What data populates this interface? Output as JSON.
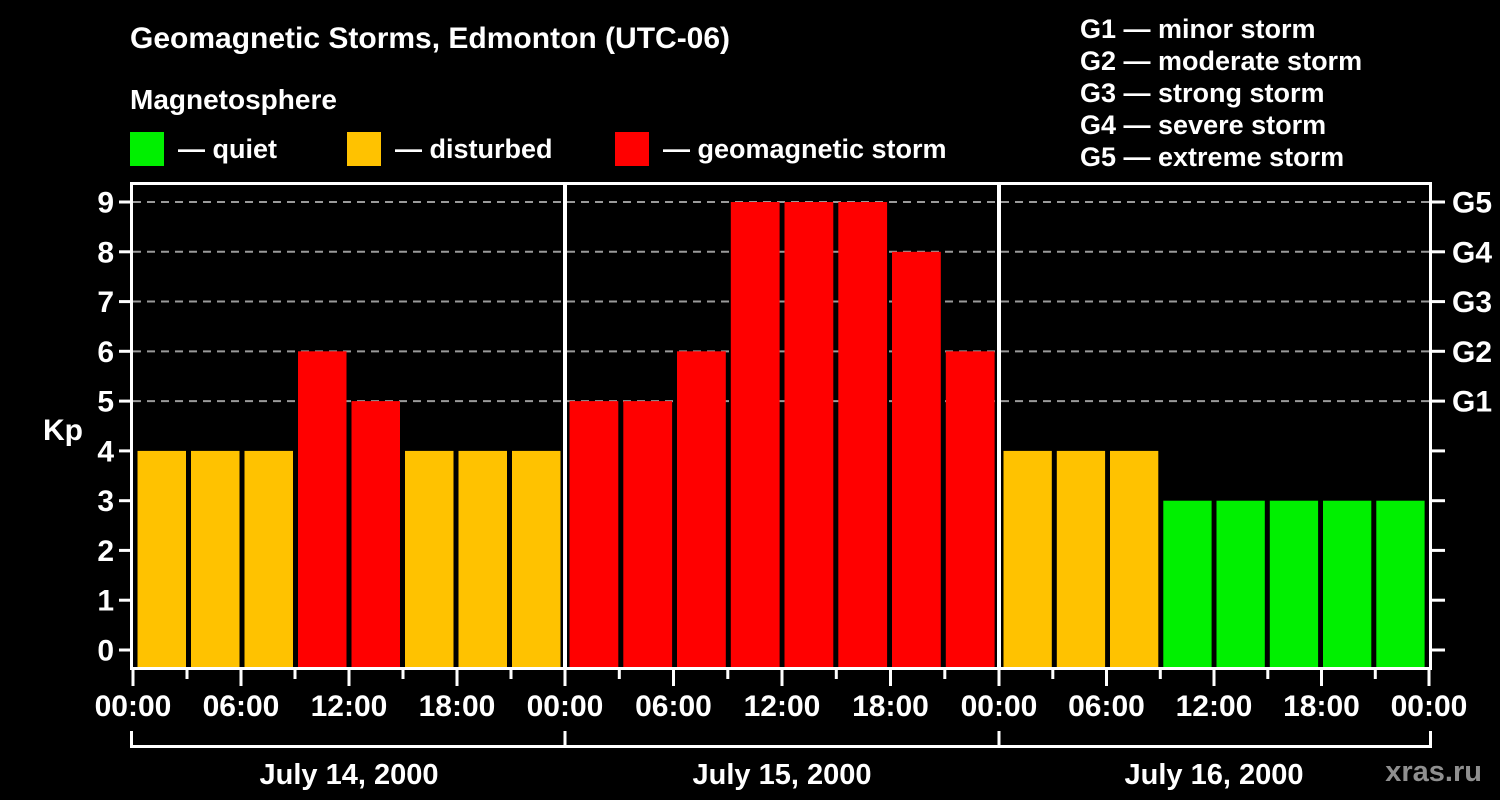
{
  "header": {
    "title": "Geomagnetic Storms, Edmonton (UTC-06)",
    "subtitle": "Magnetosphere"
  },
  "legend": {
    "items": [
      {
        "label": "— quiet",
        "state": "quiet",
        "color": "#00f000"
      },
      {
        "label": "— disturbed",
        "state": "disturbed",
        "color": "#ffc200"
      },
      {
        "label": "— geomagnetic storm",
        "state": "storm",
        "color": "#ff0000"
      }
    ]
  },
  "storm_scale": [
    "G1 — minor storm",
    "G2 — moderate storm",
    "G3 — strong storm",
    "G4 — severe storm",
    "G5 — extreme storm"
  ],
  "watermark": {
    "text": "xras.ru",
    "color": "#8f8f8f"
  },
  "chart_data": {
    "type": "bar",
    "title": "Geomagnetic Storms, Edmonton (UTC-06)",
    "ylabel": "Kp",
    "ylim": [
      0,
      9
    ],
    "yticks": [
      0,
      1,
      2,
      3,
      4,
      5,
      6,
      7,
      8,
      9
    ],
    "grid_levels": [
      5,
      6,
      7,
      8,
      9
    ],
    "grid_style": "dashed",
    "right_axis": [
      {
        "kp": 5,
        "label": "G1"
      },
      {
        "kp": 6,
        "label": "G2"
      },
      {
        "kp": 7,
        "label": "G3"
      },
      {
        "kp": 8,
        "label": "G4"
      },
      {
        "kp": 9,
        "label": "G5"
      }
    ],
    "x_axis_labels": [
      "00:00",
      "06:00",
      "12:00",
      "18:00",
      "00:00",
      "06:00",
      "12:00",
      "18:00",
      "00:00",
      "06:00",
      "12:00",
      "18:00",
      "00:00"
    ],
    "bar_interval_hours": 3,
    "colors": {
      "quiet": "#00f000",
      "disturbed": "#ffc200",
      "storm": "#ff0000"
    },
    "days": [
      {
        "date": "July 14, 2000",
        "hours": [
          "00:00",
          "03:00",
          "06:00",
          "09:00",
          "12:00",
          "15:00",
          "18:00",
          "21:00"
        ],
        "kp": [
          4,
          4,
          4,
          6,
          5,
          4,
          4,
          4
        ],
        "state": [
          "disturbed",
          "disturbed",
          "disturbed",
          "storm",
          "storm",
          "disturbed",
          "disturbed",
          "disturbed"
        ]
      },
      {
        "date": "July 15, 2000",
        "hours": [
          "00:00",
          "03:00",
          "06:00",
          "09:00",
          "12:00",
          "15:00",
          "18:00",
          "21:00"
        ],
        "kp": [
          5,
          5,
          6,
          9,
          9,
          9,
          8,
          6
        ],
        "state": [
          "storm",
          "storm",
          "storm",
          "storm",
          "storm",
          "storm",
          "storm",
          "storm"
        ]
      },
      {
        "date": "July 16, 2000",
        "hours": [
          "00:00",
          "03:00",
          "06:00",
          "09:00",
          "12:00",
          "15:00",
          "18:00",
          "21:00"
        ],
        "kp": [
          4,
          4,
          4,
          3,
          3,
          3,
          3,
          3
        ],
        "state": [
          "disturbed",
          "disturbed",
          "disturbed",
          "quiet",
          "quiet",
          "quiet",
          "quiet",
          "quiet"
        ]
      }
    ]
  }
}
